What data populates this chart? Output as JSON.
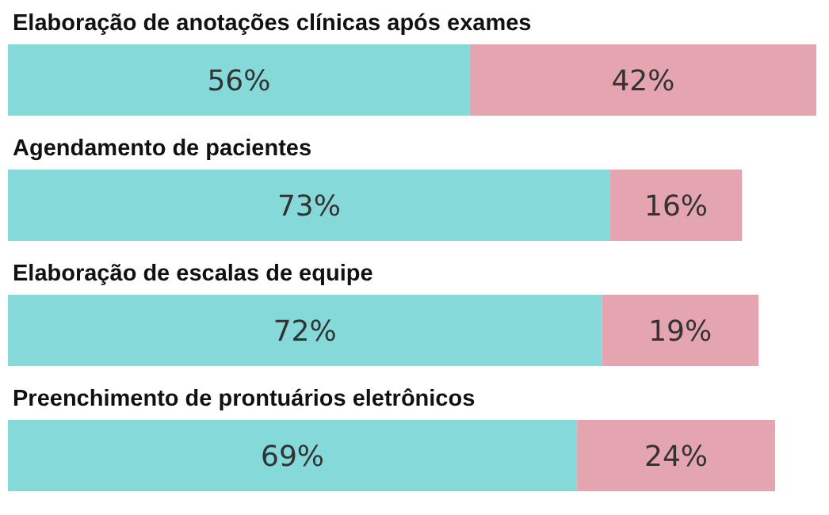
{
  "chart_data": {
    "type": "bar",
    "orientation": "horizontal",
    "stacked": true,
    "categories": [
      "Elaboração de anotações clínicas após exames",
      "Agendamento de pacientes",
      "Elaboração de escalas de equipe",
      "Preenchimento de prontuários eletrônicos"
    ],
    "series": [
      {
        "color": "#86d9d9",
        "values": [
          56,
          73,
          72,
          69
        ],
        "value_labels": [
          "56%",
          "73%",
          "72%",
          "69%"
        ]
      },
      {
        "color": "#e4a5b0",
        "values": [
          42,
          16,
          19,
          24
        ],
        "value_labels": [
          "42%",
          "16%",
          "19%",
          "24%"
        ]
      }
    ]
  }
}
